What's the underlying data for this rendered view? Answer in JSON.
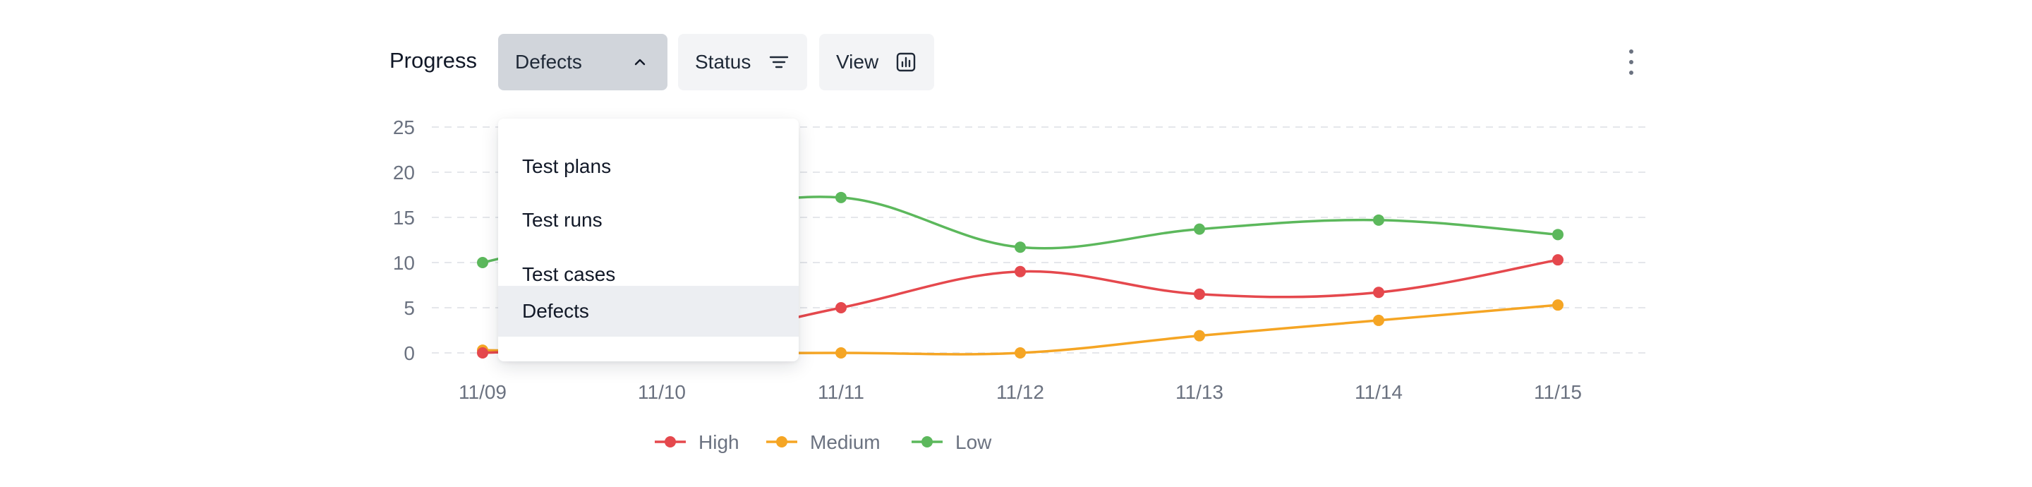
{
  "toolbar": {
    "title": "Progress",
    "metric_button": {
      "label": "Defects",
      "icon": "chevron-up-icon"
    },
    "status_button": {
      "label": "Status",
      "icon": "filter-lines-icon"
    },
    "view_button": {
      "label": "View",
      "icon": "bar-chart-icon"
    },
    "more_icon": "vertical-ellipsis-icon"
  },
  "dropdown": {
    "open": true,
    "selected_index": 3,
    "items": [
      "Test plans",
      "Test runs",
      "Test cases",
      "Defects"
    ]
  },
  "chart_data": {
    "type": "line",
    "categories": [
      "11/09",
      "11/10",
      "11/11",
      "11/12",
      "11/13",
      "11/14",
      "11/15"
    ],
    "ylim": [
      0,
      25
    ],
    "yticks": [
      "0",
      "5",
      "10",
      "15",
      "20",
      "25"
    ],
    "grid": true,
    "legend_position": "bottom-center",
    "series": [
      {
        "name": "High",
        "color": "#e5484d",
        "values": [
          0,
          1,
          5,
          9,
          6.5,
          6.7,
          10.3
        ]
      },
      {
        "name": "Medium",
        "color": "#f5a524",
        "values": [
          0.3,
          0,
          0,
          0,
          1.9,
          3.6,
          5.3
        ]
      },
      {
        "name": "Low",
        "color": "#5cb85c",
        "values": [
          10,
          14.5,
          17.2,
          11.7,
          13.7,
          14.7,
          13.1
        ]
      }
    ]
  }
}
